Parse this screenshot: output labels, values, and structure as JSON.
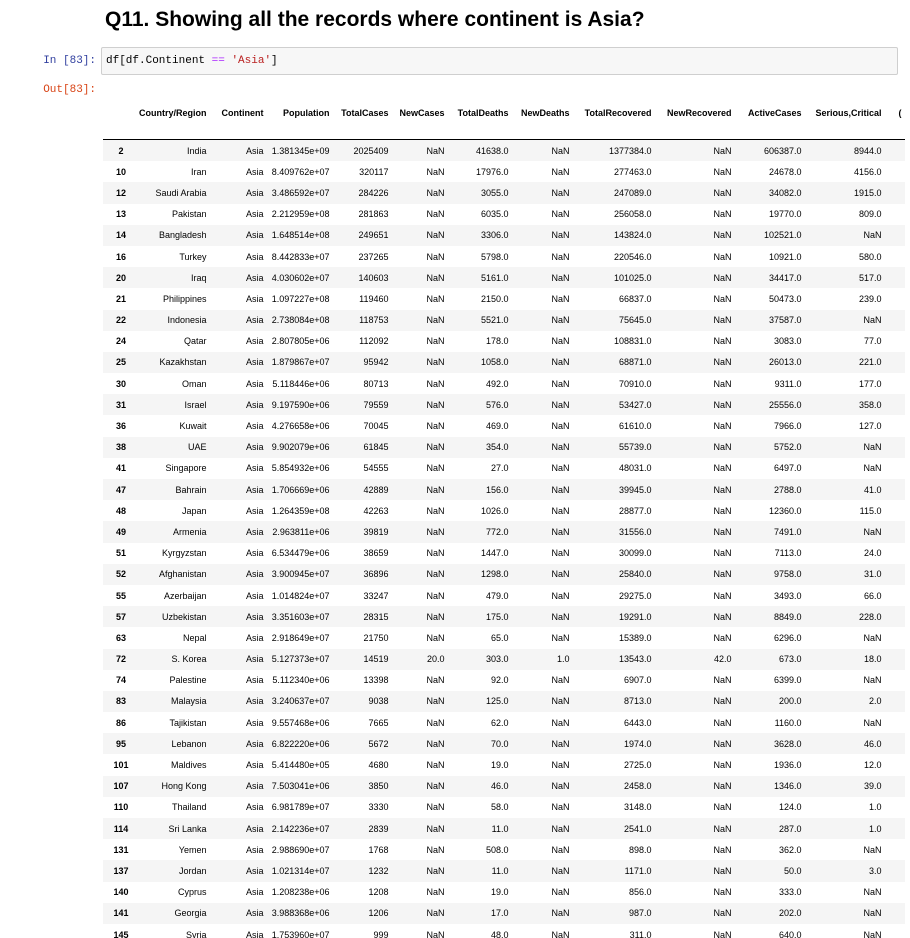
{
  "heading": "Q11. Showing all the records where continent is Asia?",
  "prompts": {
    "in": "In [83]:",
    "out": "Out[83]:"
  },
  "code": {
    "pre": "df[df.Continent ",
    "op": "==",
    "mid": " ",
    "str": "'Asia'",
    "post": "]"
  },
  "columns": [
    "",
    "Country/Region",
    "Continent",
    "Population",
    "TotalCases",
    "NewCases",
    "TotalDeaths",
    "NewDeaths",
    "TotalRecovered",
    "NewRecovered",
    "ActiveCases",
    "Serious,Critical",
    "("
  ],
  "rows": [
    [
      "2",
      "India",
      "Asia",
      "1.381345e+09",
      "2025409",
      "NaN",
      "41638.0",
      "NaN",
      "1377384.0",
      "NaN",
      "606387.0",
      "8944.0"
    ],
    [
      "10",
      "Iran",
      "Asia",
      "8.409762e+07",
      "320117",
      "NaN",
      "17976.0",
      "NaN",
      "277463.0",
      "NaN",
      "24678.0",
      "4156.0"
    ],
    [
      "12",
      "Saudi Arabia",
      "Asia",
      "3.486592e+07",
      "284226",
      "NaN",
      "3055.0",
      "NaN",
      "247089.0",
      "NaN",
      "34082.0",
      "1915.0"
    ],
    [
      "13",
      "Pakistan",
      "Asia",
      "2.212959e+08",
      "281863",
      "NaN",
      "6035.0",
      "NaN",
      "256058.0",
      "NaN",
      "19770.0",
      "809.0"
    ],
    [
      "14",
      "Bangladesh",
      "Asia",
      "1.648514e+08",
      "249651",
      "NaN",
      "3306.0",
      "NaN",
      "143824.0",
      "NaN",
      "102521.0",
      "NaN"
    ],
    [
      "16",
      "Turkey",
      "Asia",
      "8.442833e+07",
      "237265",
      "NaN",
      "5798.0",
      "NaN",
      "220546.0",
      "NaN",
      "10921.0",
      "580.0"
    ],
    [
      "20",
      "Iraq",
      "Asia",
      "4.030602e+07",
      "140603",
      "NaN",
      "5161.0",
      "NaN",
      "101025.0",
      "NaN",
      "34417.0",
      "517.0"
    ],
    [
      "21",
      "Philippines",
      "Asia",
      "1.097227e+08",
      "119460",
      "NaN",
      "2150.0",
      "NaN",
      "66837.0",
      "NaN",
      "50473.0",
      "239.0"
    ],
    [
      "22",
      "Indonesia",
      "Asia",
      "2.738084e+08",
      "118753",
      "NaN",
      "5521.0",
      "NaN",
      "75645.0",
      "NaN",
      "37587.0",
      "NaN"
    ],
    [
      "24",
      "Qatar",
      "Asia",
      "2.807805e+06",
      "112092",
      "NaN",
      "178.0",
      "NaN",
      "108831.0",
      "NaN",
      "3083.0",
      "77.0"
    ],
    [
      "25",
      "Kazakhstan",
      "Asia",
      "1.879867e+07",
      "95942",
      "NaN",
      "1058.0",
      "NaN",
      "68871.0",
      "NaN",
      "26013.0",
      "221.0"
    ],
    [
      "30",
      "Oman",
      "Asia",
      "5.118446e+06",
      "80713",
      "NaN",
      "492.0",
      "NaN",
      "70910.0",
      "NaN",
      "9311.0",
      "177.0"
    ],
    [
      "31",
      "Israel",
      "Asia",
      "9.197590e+06",
      "79559",
      "NaN",
      "576.0",
      "NaN",
      "53427.0",
      "NaN",
      "25556.0",
      "358.0"
    ],
    [
      "36",
      "Kuwait",
      "Asia",
      "4.276658e+06",
      "70045",
      "NaN",
      "469.0",
      "NaN",
      "61610.0",
      "NaN",
      "7966.0",
      "127.0"
    ],
    [
      "38",
      "UAE",
      "Asia",
      "9.902079e+06",
      "61845",
      "NaN",
      "354.0",
      "NaN",
      "55739.0",
      "NaN",
      "5752.0",
      "NaN"
    ],
    [
      "41",
      "Singapore",
      "Asia",
      "5.854932e+06",
      "54555",
      "NaN",
      "27.0",
      "NaN",
      "48031.0",
      "NaN",
      "6497.0",
      "NaN"
    ],
    [
      "47",
      "Bahrain",
      "Asia",
      "1.706669e+06",
      "42889",
      "NaN",
      "156.0",
      "NaN",
      "39945.0",
      "NaN",
      "2788.0",
      "41.0"
    ],
    [
      "48",
      "Japan",
      "Asia",
      "1.264359e+08",
      "42263",
      "NaN",
      "1026.0",
      "NaN",
      "28877.0",
      "NaN",
      "12360.0",
      "115.0"
    ],
    [
      "49",
      "Armenia",
      "Asia",
      "2.963811e+06",
      "39819",
      "NaN",
      "772.0",
      "NaN",
      "31556.0",
      "NaN",
      "7491.0",
      "NaN"
    ],
    [
      "51",
      "Kyrgyzstan",
      "Asia",
      "6.534479e+06",
      "38659",
      "NaN",
      "1447.0",
      "NaN",
      "30099.0",
      "NaN",
      "7113.0",
      "24.0"
    ],
    [
      "52",
      "Afghanistan",
      "Asia",
      "3.900945e+07",
      "36896",
      "NaN",
      "1298.0",
      "NaN",
      "25840.0",
      "NaN",
      "9758.0",
      "31.0"
    ],
    [
      "55",
      "Azerbaijan",
      "Asia",
      "1.014824e+07",
      "33247",
      "NaN",
      "479.0",
      "NaN",
      "29275.0",
      "NaN",
      "3493.0",
      "66.0"
    ],
    [
      "57",
      "Uzbekistan",
      "Asia",
      "3.351603e+07",
      "28315",
      "NaN",
      "175.0",
      "NaN",
      "19291.0",
      "NaN",
      "8849.0",
      "228.0"
    ],
    [
      "63",
      "Nepal",
      "Asia",
      "2.918649e+07",
      "21750",
      "NaN",
      "65.0",
      "NaN",
      "15389.0",
      "NaN",
      "6296.0",
      "NaN"
    ],
    [
      "72",
      "S. Korea",
      "Asia",
      "5.127373e+07",
      "14519",
      "20.0",
      "303.0",
      "1.0",
      "13543.0",
      "42.0",
      "673.0",
      "18.0"
    ],
    [
      "74",
      "Palestine",
      "Asia",
      "5.112340e+06",
      "13398",
      "NaN",
      "92.0",
      "NaN",
      "6907.0",
      "NaN",
      "6399.0",
      "NaN"
    ],
    [
      "83",
      "Malaysia",
      "Asia",
      "3.240637e+07",
      "9038",
      "NaN",
      "125.0",
      "NaN",
      "8713.0",
      "NaN",
      "200.0",
      "2.0"
    ],
    [
      "86",
      "Tajikistan",
      "Asia",
      "9.557468e+06",
      "7665",
      "NaN",
      "62.0",
      "NaN",
      "6443.0",
      "NaN",
      "1160.0",
      "NaN"
    ],
    [
      "95",
      "Lebanon",
      "Asia",
      "6.822220e+06",
      "5672",
      "NaN",
      "70.0",
      "NaN",
      "1974.0",
      "NaN",
      "3628.0",
      "46.0"
    ],
    [
      "101",
      "Maldives",
      "Asia",
      "5.414480e+05",
      "4680",
      "NaN",
      "19.0",
      "NaN",
      "2725.0",
      "NaN",
      "1936.0",
      "12.0"
    ],
    [
      "107",
      "Hong Kong",
      "Asia",
      "7.503041e+06",
      "3850",
      "NaN",
      "46.0",
      "NaN",
      "2458.0",
      "NaN",
      "1346.0",
      "39.0"
    ],
    [
      "110",
      "Thailand",
      "Asia",
      "6.981789e+07",
      "3330",
      "NaN",
      "58.0",
      "NaN",
      "3148.0",
      "NaN",
      "124.0",
      "1.0"
    ],
    [
      "114",
      "Sri Lanka",
      "Asia",
      "2.142236e+07",
      "2839",
      "NaN",
      "11.0",
      "NaN",
      "2541.0",
      "NaN",
      "287.0",
      "1.0"
    ],
    [
      "131",
      "Yemen",
      "Asia",
      "2.988690e+07",
      "1768",
      "NaN",
      "508.0",
      "NaN",
      "898.0",
      "NaN",
      "362.0",
      "NaN"
    ],
    [
      "137",
      "Jordan",
      "Asia",
      "1.021314e+07",
      "1232",
      "NaN",
      "11.0",
      "NaN",
      "1171.0",
      "NaN",
      "50.0",
      "3.0"
    ],
    [
      "140",
      "Cyprus",
      "Asia",
      "1.208238e+06",
      "1208",
      "NaN",
      "19.0",
      "NaN",
      "856.0",
      "NaN",
      "333.0",
      "NaN"
    ],
    [
      "141",
      "Georgia",
      "Asia",
      "3.988368e+06",
      "1206",
      "NaN",
      "17.0",
      "NaN",
      "987.0",
      "NaN",
      "202.0",
      "NaN"
    ],
    [
      "145",
      "Syria",
      "Asia",
      "1.753960e+07",
      "999",
      "NaN",
      "48.0",
      "NaN",
      "311.0",
      "NaN",
      "640.0",
      "NaN"
    ]
  ]
}
